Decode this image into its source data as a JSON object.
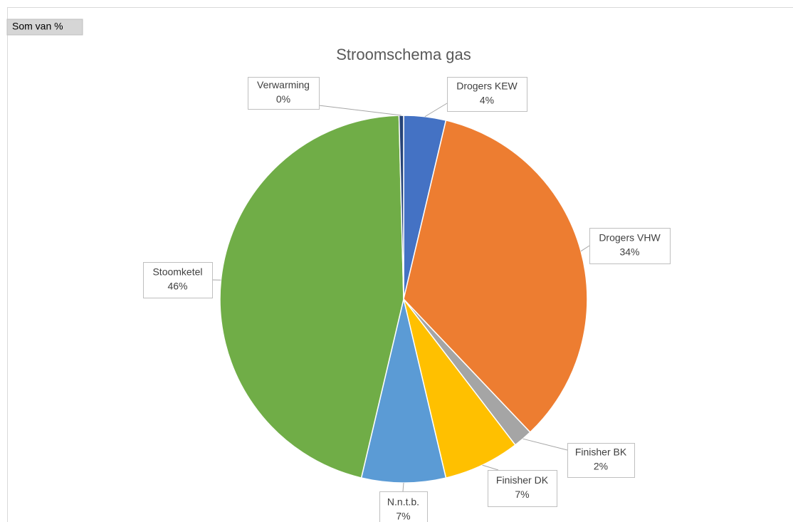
{
  "field_button": "Som van %",
  "chart_data": {
    "type": "pie",
    "title": "Stroomschema gas",
    "categories": [
      "Drogers KEW",
      "Drogers VHW",
      "Finisher BK",
      "Finisher DK",
      "N.n.t.b.",
      "Stoomketel",
      "Verwarming"
    ],
    "values": [
      3.7,
      34.2,
      1.7,
      6.7,
      7.4,
      45.9,
      0.4
    ],
    "value_labels": [
      "4%",
      "34%",
      "2%",
      "7%",
      "7%",
      "46%",
      "0%"
    ],
    "colors": [
      "#4472c4",
      "#ed7d31",
      "#a5a5a5",
      "#ffc000",
      "#5b9bd5",
      "#70ad47",
      "#264478"
    ]
  }
}
